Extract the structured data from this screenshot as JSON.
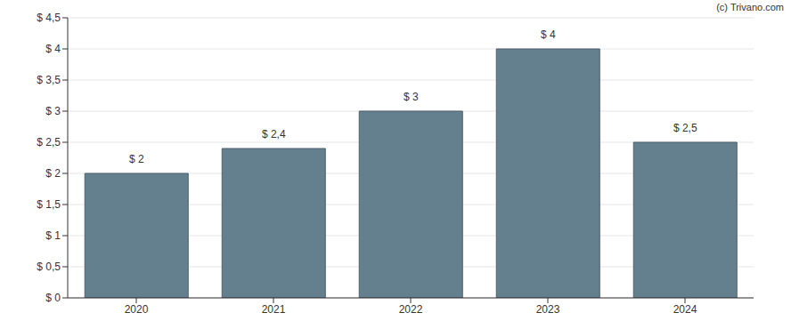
{
  "chart_data": {
    "type": "bar",
    "annotation": "(c) Trivano.com",
    "categories": [
      "2020",
      "2021",
      "2022",
      "2023",
      "2024"
    ],
    "values": [
      2,
      2.4,
      3,
      4,
      2.5
    ],
    "value_labels": [
      "$ 2",
      "$ 2,4",
      "$ 3",
      "$ 4",
      "$ 2,5"
    ],
    "data_labels": true,
    "color": "#64808f",
    "ylim": [
      0,
      4.5
    ],
    "yticks": [
      {
        "value": 0,
        "label": "$ 0"
      },
      {
        "value": 0.5,
        "label": "$ 0,5"
      },
      {
        "value": 1,
        "label": "$ 1"
      },
      {
        "value": 1.5,
        "label": "$ 1,5"
      },
      {
        "value": 2,
        "label": "$ 2"
      },
      {
        "value": 2.5,
        "label": "$ 2,5"
      },
      {
        "value": 3,
        "label": "$ 3"
      },
      {
        "value": 3.5,
        "label": "$ 3,5"
      },
      {
        "value": 4,
        "label": "$ 4"
      },
      {
        "value": 4.5,
        "label": "$ 4,5"
      }
    ],
    "grid": true
  }
}
